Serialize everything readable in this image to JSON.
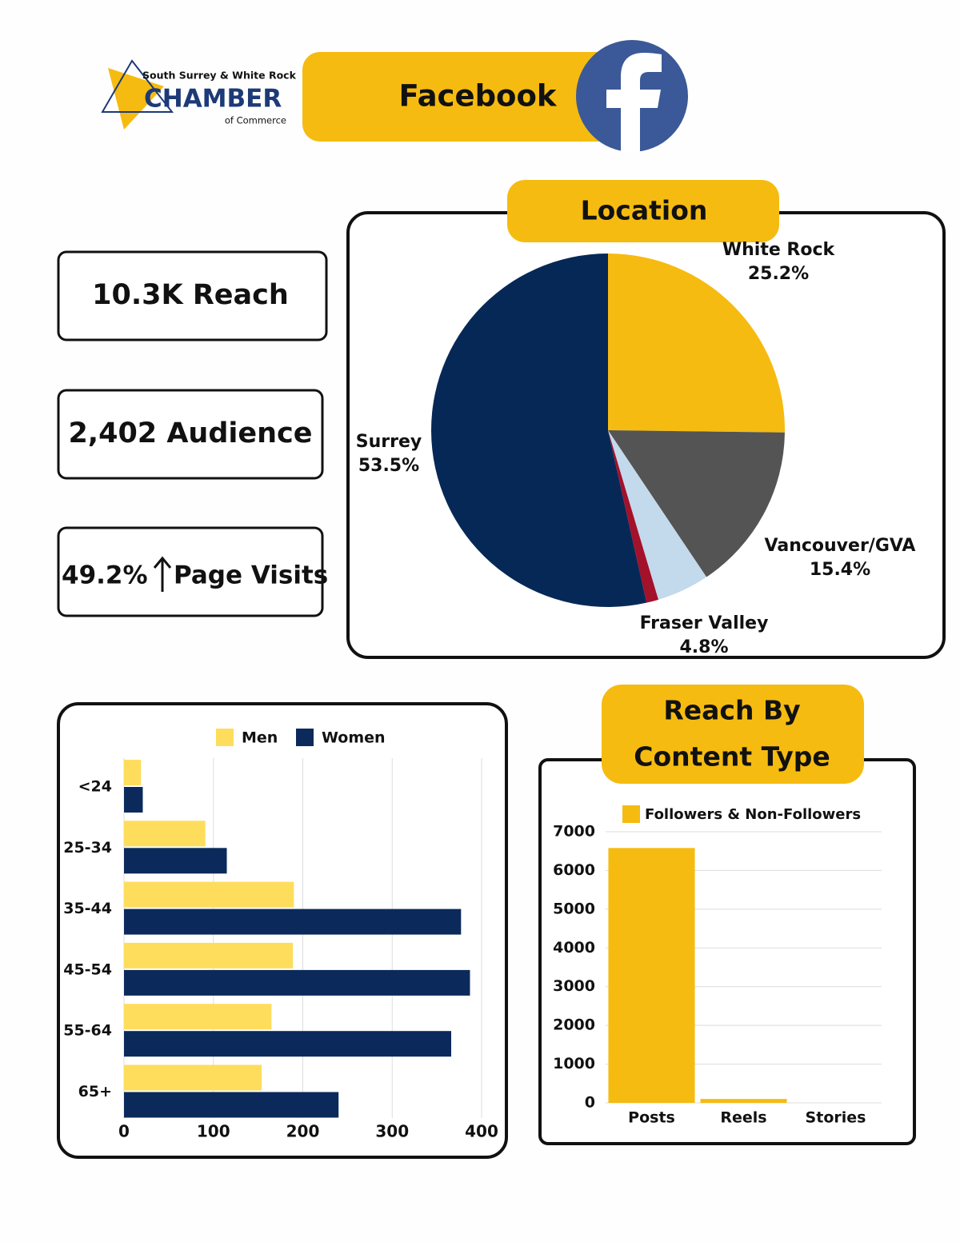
{
  "header": {
    "logo": {
      "top": "South Surrey & White Rock",
      "name": "CHAMBER",
      "bottom": "of Commerce"
    },
    "title": "Facebook"
  },
  "stats": [
    "10.3K Reach",
    "2,402 Audience",
    {
      "figure": "49.2%",
      "label": "Page Visits"
    }
  ],
  "chart_data": [
    {
      "type": "pie",
      "title": "Location",
      "categories": [
        "White Rock",
        "Vancouver/GVA",
        "Fraser Valley",
        null,
        "Surrey"
      ],
      "values": [
        25.2,
        15.4,
        4.8,
        1.1,
        53.5
      ],
      "value_labels": [
        "25.2%",
        "15.4%",
        "4.8%",
        null,
        "53.5%"
      ],
      "colors": [
        "#f6bb10",
        "#545454",
        "#c3d9ec",
        "#a3112a",
        "#062856"
      ]
    },
    {
      "type": "hbar",
      "categories": [
        "<24",
        "25-34",
        "35-44",
        "45-54",
        "55-64",
        "65+"
      ],
      "series": [
        {
          "name": "Men",
          "color": "#fedd5c",
          "values": [
            19,
            91,
            190,
            189,
            165,
            154
          ]
        },
        {
          "name": "Women",
          "color": "#0b2a5b",
          "values": [
            21,
            115,
            377,
            387,
            366,
            240
          ]
        }
      ],
      "xlim": [
        0,
        400
      ],
      "xticks": [
        0,
        100,
        200,
        300,
        400
      ],
      "grid": true,
      "legend": "top"
    },
    {
      "type": "bar",
      "title": [
        "Reach By",
        "Content Type"
      ],
      "categories": [
        "Posts",
        "Reels",
        "Stories"
      ],
      "series": [
        {
          "name": "Followers & Non-Followers",
          "color": "#f6bb10",
          "values": [
            6580,
            100,
            0
          ]
        }
      ],
      "ylim": [
        0,
        7000
      ],
      "yticks": [
        0,
        1000,
        2000,
        3000,
        4000,
        5000,
        6000,
        7000
      ],
      "grid": true,
      "legend": "top"
    }
  ]
}
